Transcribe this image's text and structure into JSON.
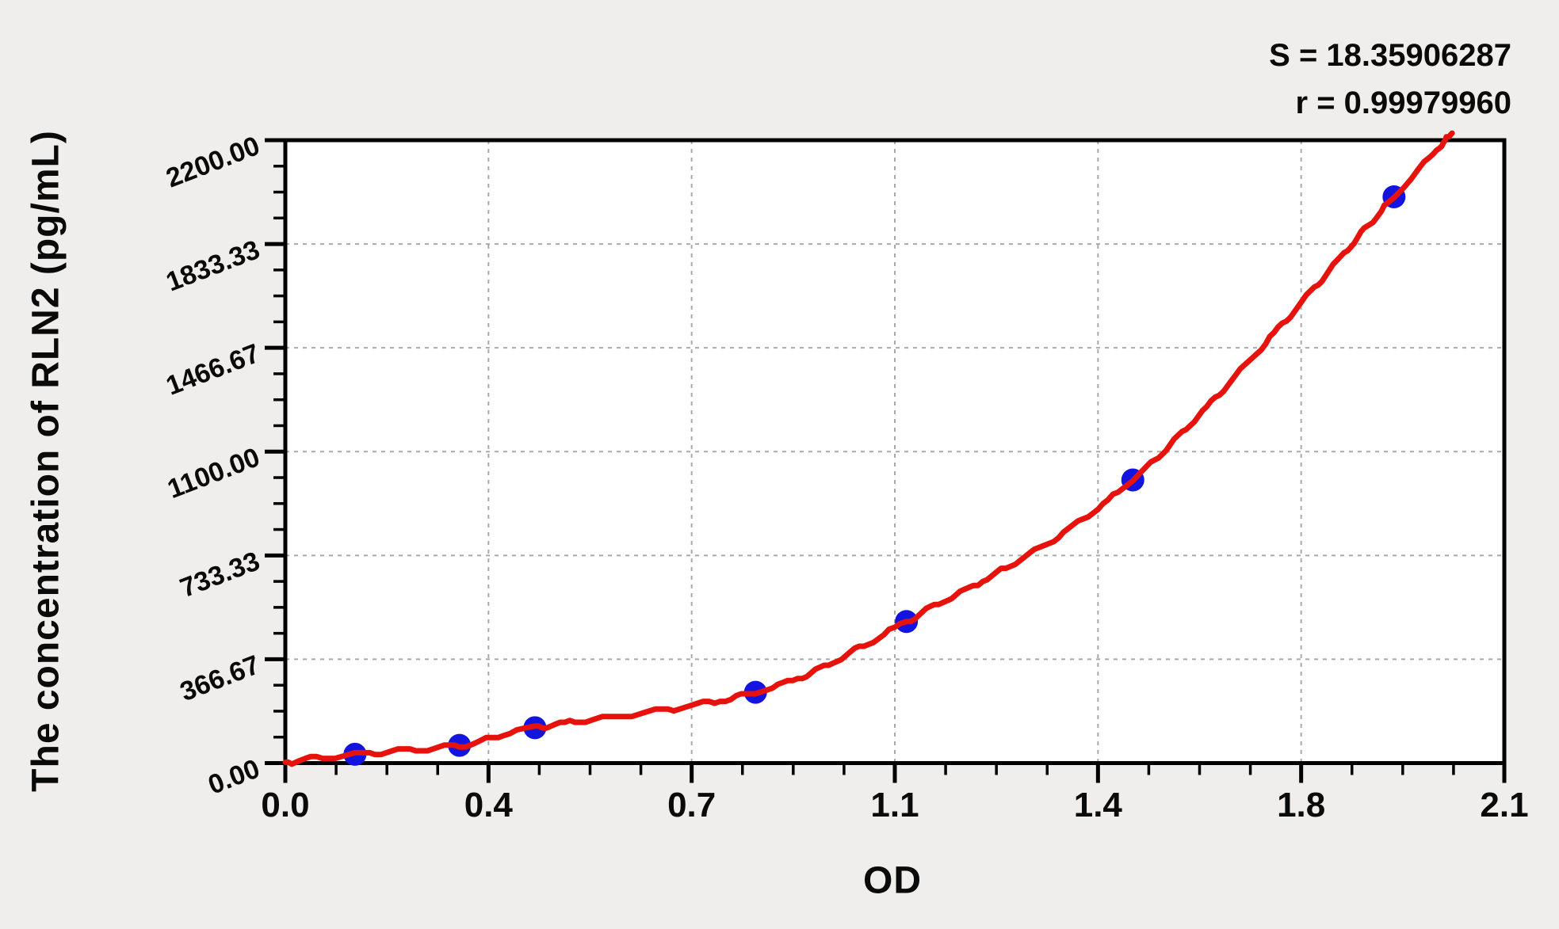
{
  "figure": {
    "background": "#efeeec"
  },
  "chart_data": {
    "type": "scatter",
    "xlabel": "OD",
    "ylabel": "The concentration of RLN2 (pg/mL)",
    "xlim": [
      0,
      2.1
    ],
    "ylim": [
      0,
      2200
    ],
    "grid": {
      "show": true,
      "style": "dashed",
      "legend": "none"
    },
    "x_ticks": {
      "values": [
        0,
        0.35,
        0.7,
        1.05,
        1.4,
        1.75,
        2.1
      ],
      "labels": [
        "0.0",
        "0.4",
        "0.7",
        "1.1",
        "1.4",
        "1.8",
        "2.1"
      ],
      "minor_divisions": 4
    },
    "y_ticks": {
      "values": [
        0,
        366.67,
        733.33,
        1100,
        1466.67,
        1833.33,
        2200
      ],
      "labels": [
        "0.00",
        "366.67",
        "733.33",
        "1100.00",
        "1466.67",
        "1833.33",
        "2200.00"
      ],
      "minor_divisions": 4
    },
    "points": [
      {
        "od": 0.12,
        "conc": 31.25
      },
      {
        "od": 0.3,
        "conc": 62.5
      },
      {
        "od": 0.43,
        "conc": 125
      },
      {
        "od": 0.81,
        "conc": 250
      },
      {
        "od": 1.07,
        "conc": 500
      },
      {
        "od": 1.46,
        "conc": 1000
      },
      {
        "od": 1.91,
        "conc": 2000
      }
    ],
    "fit_curve": {
      "anchors": [
        [
          0.0,
          3
        ],
        [
          0.12,
          31.25
        ],
        [
          0.3,
          62.5
        ],
        [
          0.43,
          125
        ],
        [
          0.81,
          250
        ],
        [
          1.07,
          500
        ],
        [
          1.46,
          1000
        ],
        [
          1.91,
          2000
        ],
        [
          2.01,
          2225
        ]
      ]
    },
    "stats": {
      "s_display": "S = 18.35906287",
      "r_display": "r = 0.99979960",
      "S": 18.35906287,
      "r": 0.9997996
    },
    "colors": {
      "point": "#1414e0",
      "curve": "#e8120c",
      "grid": "#a9a9a9",
      "axis": "#000000",
      "plot_bg": "#ffffff"
    }
  }
}
